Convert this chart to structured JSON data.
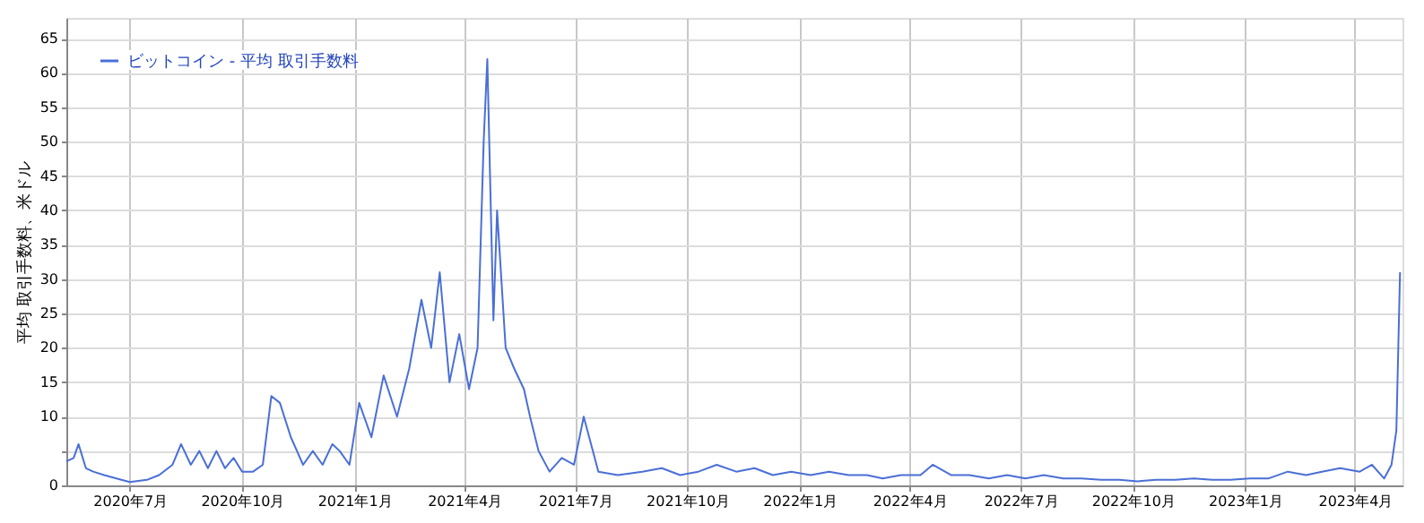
{
  "chart_data": {
    "type": "line",
    "ylabel": "平均 取引手数料、米ドル",
    "legend": "top left",
    "grid": true,
    "line_style": "solid",
    "marker": "none",
    "xlim": [
      "2020-05-10",
      "2023-05-10"
    ],
    "ylim": [
      0,
      68
    ],
    "yticks": [
      0,
      {
        "value": 5,
        "label": null
      },
      10,
      15,
      20,
      25,
      30,
      35,
      40,
      45,
      50,
      55,
      60,
      65
    ],
    "xticks": [
      {
        "value": "2020-07-01",
        "label": "2020年7月"
      },
      {
        "value": "2020-10-01",
        "label": "2020年10月"
      },
      {
        "value": "2021-01-01",
        "label": "2021年1月"
      },
      {
        "value": "2021-04-01",
        "label": "2021年4月"
      },
      {
        "value": "2021-07-01",
        "label": "2021年7月"
      },
      {
        "value": "2021-10-01",
        "label": "2021年10月"
      },
      {
        "value": "2022-01-01",
        "label": "2022年1月"
      },
      {
        "value": "2022-04-01",
        "label": "2022年4月"
      },
      {
        "value": "2022-07-01",
        "label": "2022年7月"
      },
      {
        "value": "2022-10-01",
        "label": "2022年10月"
      },
      {
        "value": "2023-01-01",
        "label": "2023年1月"
      },
      {
        "value": "2023-04-01",
        "label": "2023年4月"
      }
    ],
    "series": [
      {
        "name": "ビットコイン - 平均 取引手数料",
        "color": "#4a6fd6",
        "x": [
          "2020-05-10",
          "2020-05-16",
          "2020-05-20",
          "2020-05-26",
          "2020-06-01",
          "2020-06-10",
          "2020-06-20",
          "2020-07-01",
          "2020-07-15",
          "2020-07-25",
          "2020-08-05",
          "2020-08-12",
          "2020-08-20",
          "2020-08-27",
          "2020-09-03",
          "2020-09-10",
          "2020-09-17",
          "2020-09-24",
          "2020-10-01",
          "2020-10-10",
          "2020-10-18",
          "2020-10-25",
          "2020-11-01",
          "2020-11-10",
          "2020-11-20",
          "2020-11-28",
          "2020-12-06",
          "2020-12-14",
          "2020-12-20",
          "2020-12-28",
          "2021-01-05",
          "2021-01-15",
          "2021-01-25",
          "2021-02-05",
          "2021-02-15",
          "2021-02-25",
          "2021-03-05",
          "2021-03-12",
          "2021-03-20",
          "2021-03-28",
          "2021-04-05",
          "2021-04-12",
          "2021-04-17",
          "2021-04-20",
          "2021-04-25",
          "2021-04-28",
          "2021-05-05",
          "2021-05-12",
          "2021-05-20",
          "2021-05-25",
          "2021-06-01",
          "2021-06-10",
          "2021-06-20",
          "2021-06-30",
          "2021-07-08",
          "2021-07-20",
          "2021-08-05",
          "2021-08-25",
          "2021-09-10",
          "2021-09-25",
          "2021-10-10",
          "2021-10-25",
          "2021-11-10",
          "2021-11-25",
          "2021-12-10",
          "2021-12-25",
          "2022-01-10",
          "2022-01-25",
          "2022-02-10",
          "2022-02-25",
          "2022-03-10",
          "2022-03-25",
          "2022-04-10",
          "2022-04-20",
          "2022-05-05",
          "2022-05-20",
          "2022-06-05",
          "2022-06-20",
          "2022-07-05",
          "2022-07-20",
          "2022-08-05",
          "2022-08-20",
          "2022-09-05",
          "2022-09-20",
          "2022-10-05",
          "2022-10-20",
          "2022-11-05",
          "2022-11-20",
          "2022-12-05",
          "2022-12-20",
          "2023-01-05",
          "2023-01-20",
          "2023-02-05",
          "2023-02-20",
          "2023-03-05",
          "2023-03-20",
          "2023-04-05",
          "2023-04-15",
          "2023-04-25",
          "2023-05-01",
          "2023-05-05",
          "2023-05-08"
        ],
        "values": [
          3.5,
          4,
          6,
          2.5,
          2,
          1.5,
          1,
          0.5,
          0.8,
          1.5,
          3,
          6,
          3,
          5,
          2.5,
          5,
          2.5,
          4,
          2,
          2,
          3,
          13,
          12,
          7,
          3,
          5,
          3,
          6,
          5,
          3,
          12,
          7,
          16,
          10,
          17,
          27,
          20,
          31,
          15,
          22,
          14,
          20,
          50,
          62,
          24,
          40,
          20,
          17,
          14,
          10,
          5,
          2,
          4,
          3,
          10,
          2,
          1.5,
          2,
          2.5,
          1.5,
          2,
          3,
          2,
          2.5,
          1.5,
          2,
          1.5,
          2,
          1.5,
          1.5,
          1,
          1.5,
          1.5,
          3,
          1.5,
          1.5,
          1,
          1.5,
          1,
          1.5,
          1,
          1,
          0.8,
          0.8,
          0.6,
          0.8,
          0.8,
          1,
          0.8,
          0.8,
          1,
          1,
          2,
          1.5,
          2,
          2.5,
          2,
          3,
          1,
          3,
          8,
          31
        ]
      }
    ]
  }
}
